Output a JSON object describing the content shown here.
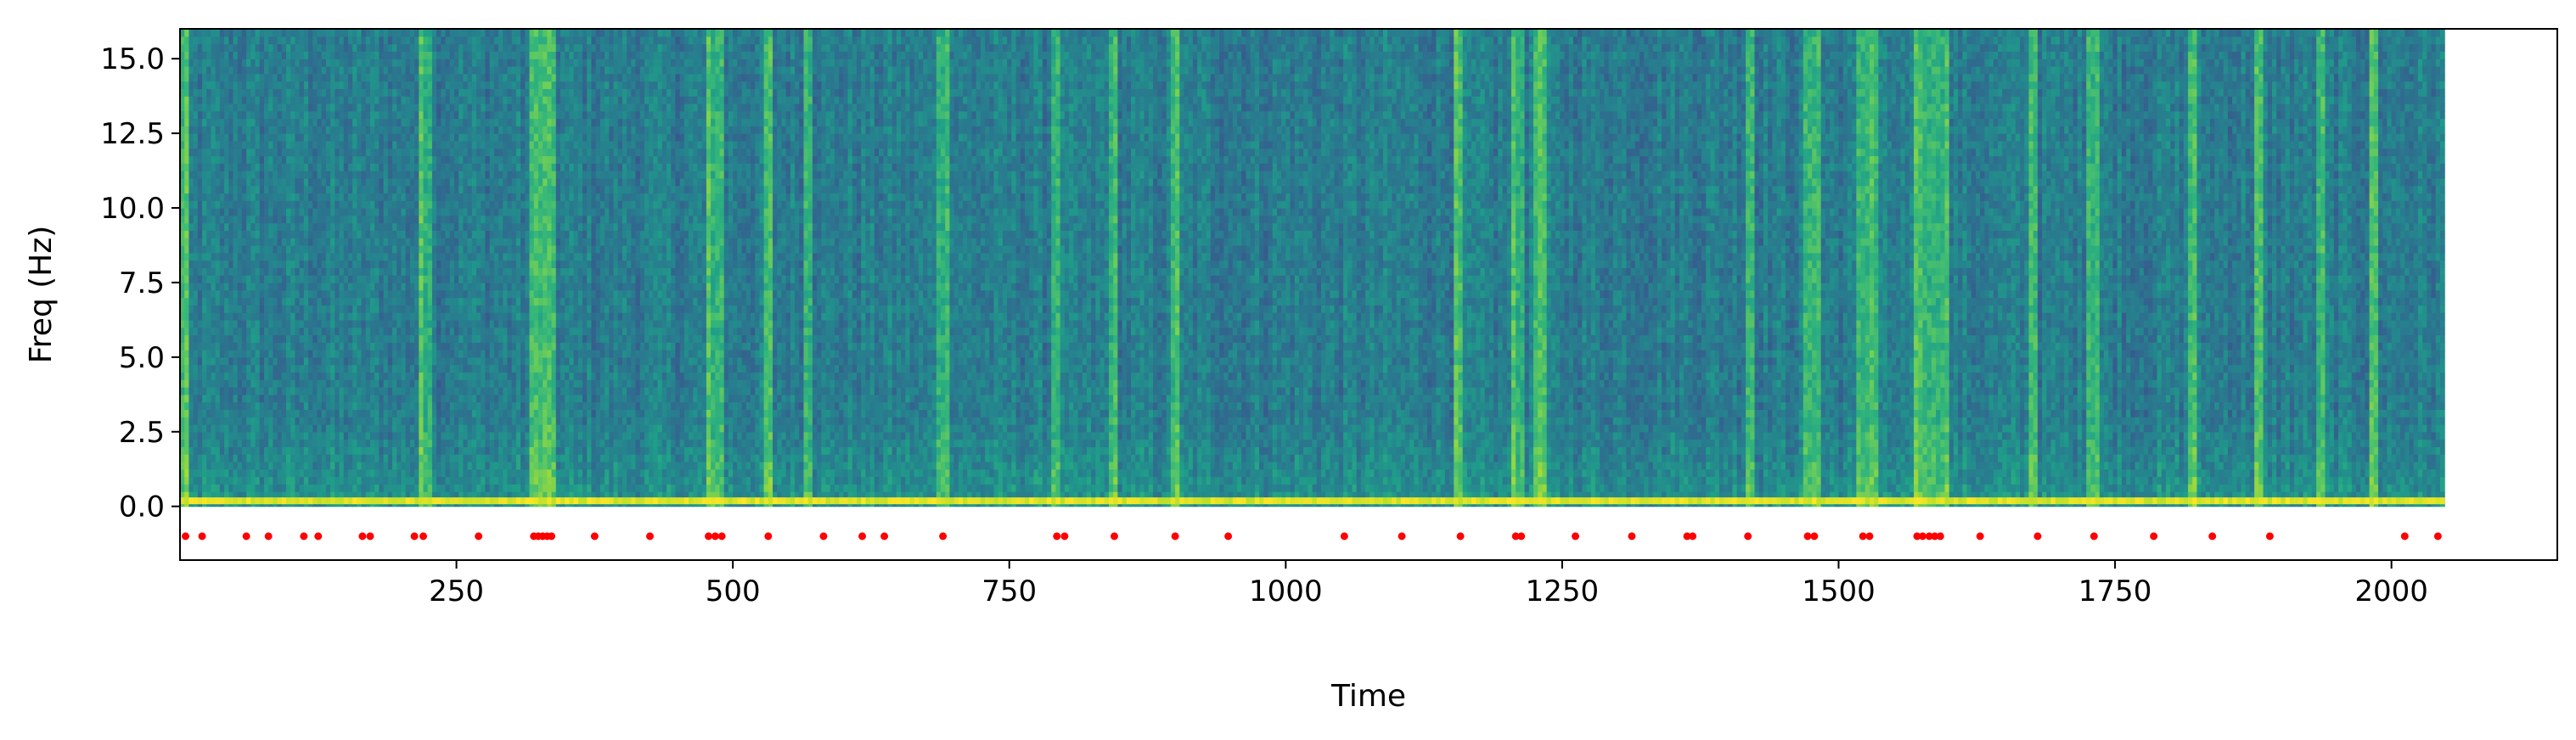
{
  "chart_data": {
    "type": "heatmap",
    "title": "",
    "xlabel": "Time",
    "ylabel": "Freq (Hz)",
    "xlim": [
      0,
      2150
    ],
    "ylim": [
      -1.8,
      16
    ],
    "x_ticks": [
      250,
      500,
      750,
      1000,
      1250,
      1500,
      1750,
      2000
    ],
    "x_tick_labels": [
      "250",
      "500",
      "750",
      "1000",
      "1250",
      "1500",
      "1750",
      "2000"
    ],
    "y_ticks": [
      0.0,
      2.5,
      5.0,
      7.5,
      10.0,
      12.5,
      15.0
    ],
    "y_tick_labels": [
      "0.0",
      "2.5",
      "5.0",
      "7.5",
      "10.0",
      "12.5",
      "15.0"
    ],
    "spectrogram": {
      "time_range": [
        0,
        2048
      ],
      "freq_range": [
        0.0,
        16.0
      ],
      "colormap": "viridis",
      "dc_band_freq": [
        0.1,
        0.3
      ],
      "bright_time_columns": [
        3,
        222,
        322,
        330,
        336,
        480,
        487,
        532,
        568,
        690,
        792,
        845,
        900,
        1155,
        1210,
        1230,
        1420,
        1472,
        1480,
        1522,
        1530,
        1574,
        1582,
        1590,
        1596,
        1675,
        1730,
        1820,
        1880,
        1935,
        1985
      ]
    },
    "series": [
      {
        "type": "scatter",
        "color": "#ff0000",
        "y": -1.0,
        "x": [
          5,
          20,
          60,
          80,
          112,
          125,
          165,
          172,
          212,
          220,
          270,
          320,
          324,
          328,
          332,
          336,
          375,
          425,
          478,
          484,
          490,
          532,
          582,
          617,
          637,
          690,
          793,
          800,
          845,
          900,
          948,
          1053,
          1105,
          1158,
          1208,
          1213,
          1262,
          1313,
          1363,
          1368,
          1418,
          1472,
          1478,
          1522,
          1528,
          1571,
          1576,
          1582,
          1587,
          1592,
          1628,
          1680,
          1731,
          1785,
          1838,
          1890,
          2012,
          2042
        ]
      }
    ]
  }
}
